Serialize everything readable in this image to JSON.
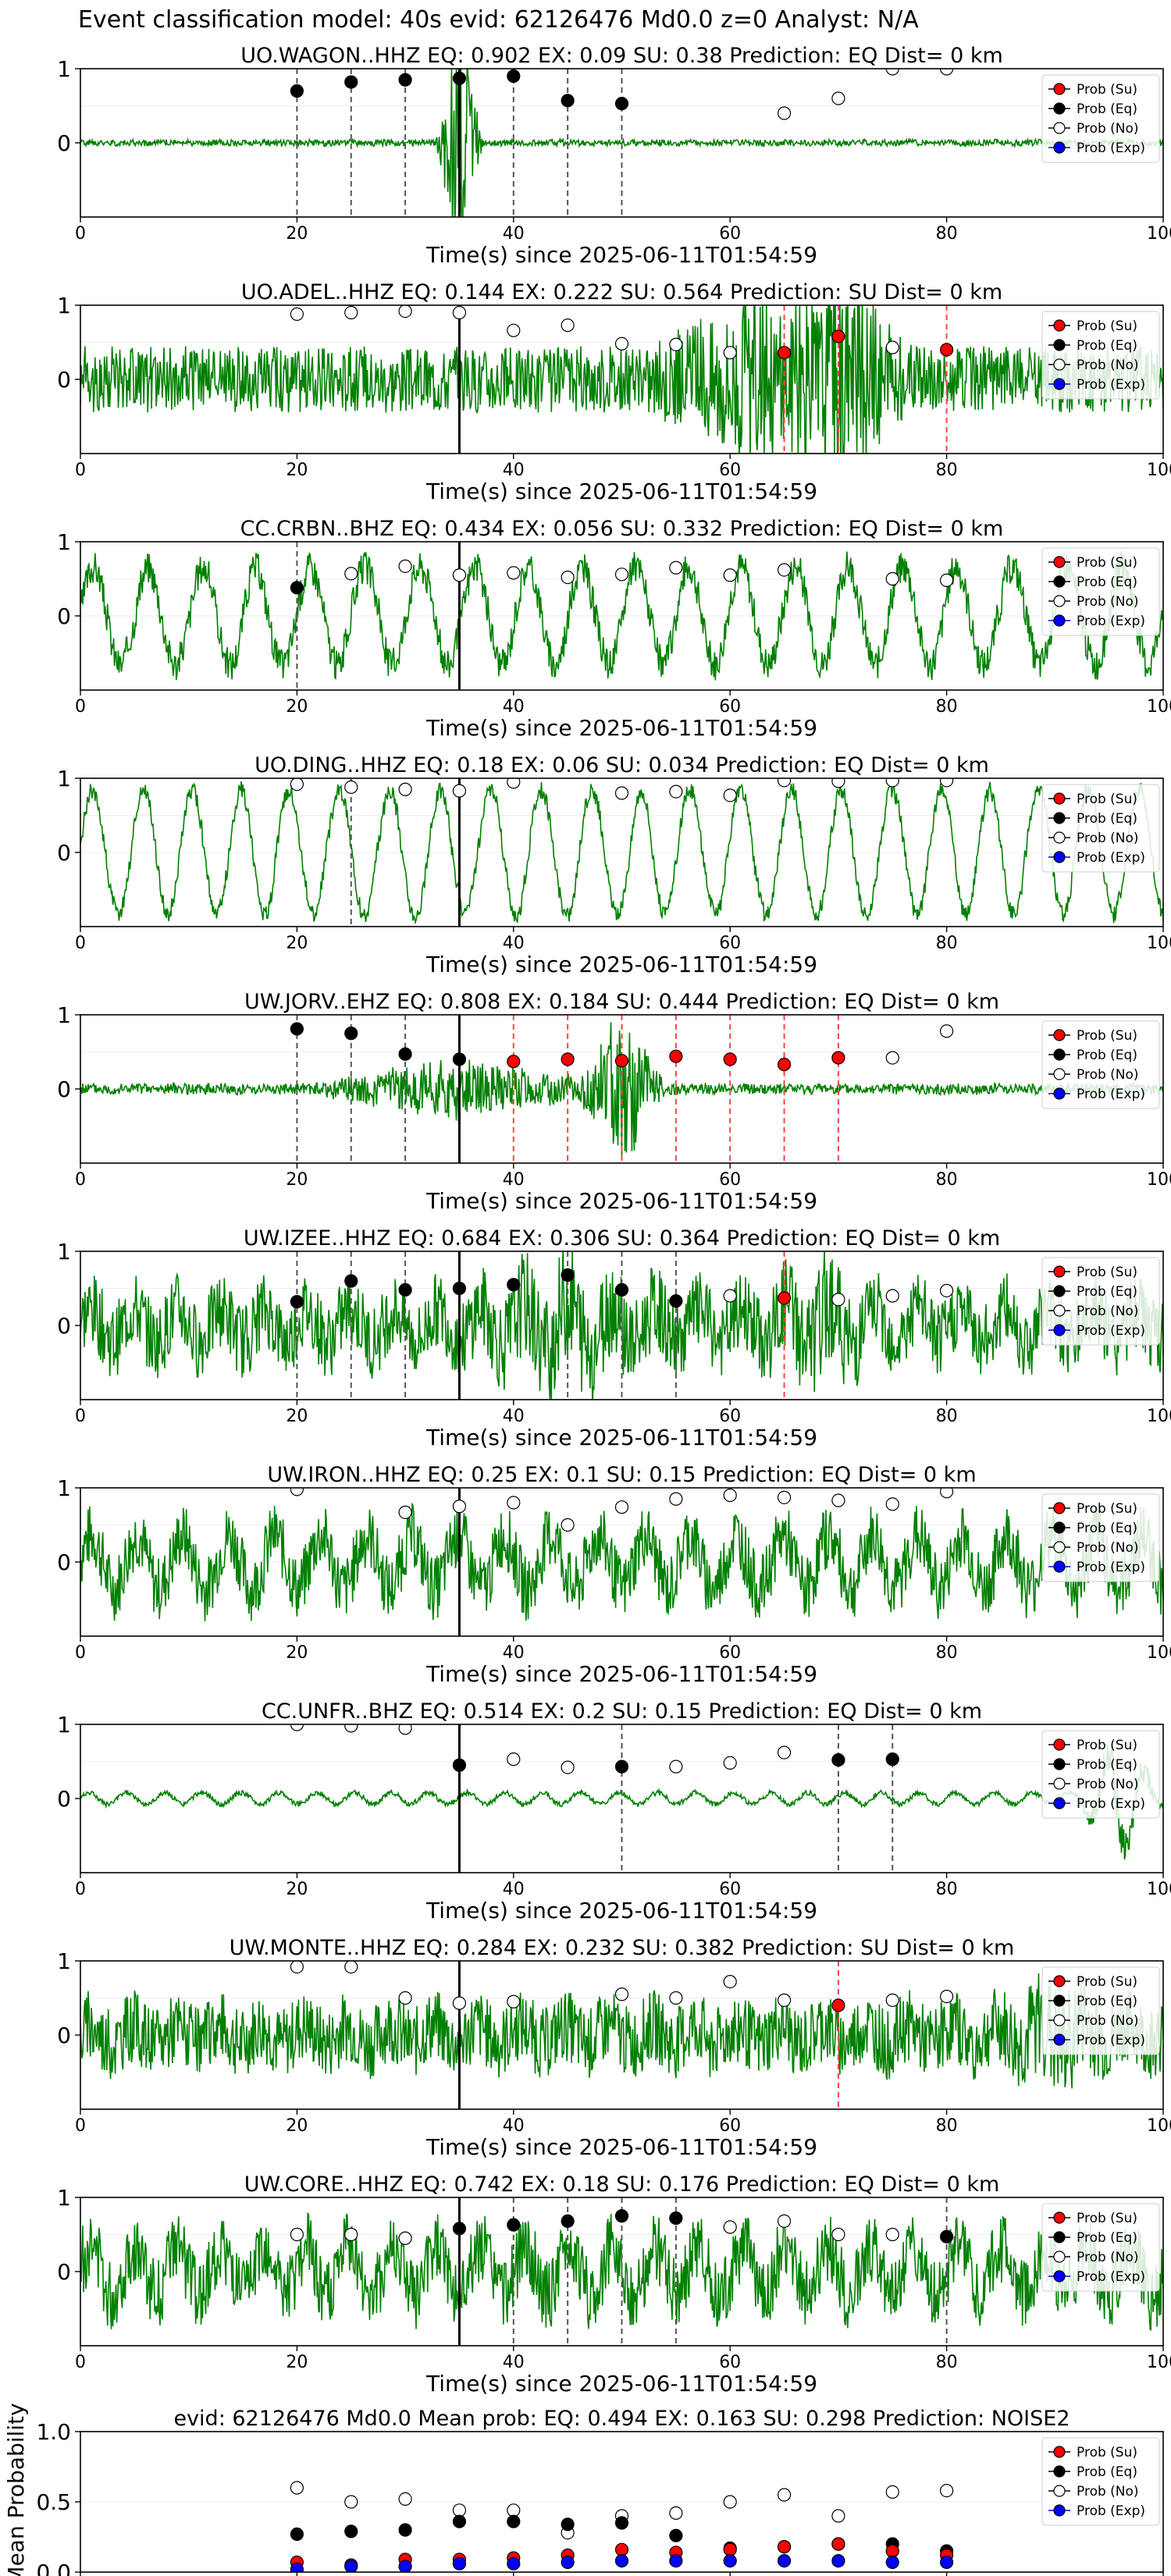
{
  "suptitle": "Event classification model: 40s evid: 62126476 Md0.0 z=0 Analyst: N/A",
  "colors": {
    "waveform": "#008000",
    "su": "#ff0000",
    "eq": "#000000",
    "no": "#ffffff",
    "exp": "#0000ff"
  },
  "legend": [
    "Prob (Su)",
    "Prob (Eq)",
    "Prob (No)",
    "Prob (Exp)"
  ],
  "xlabel": "Time(s) since 2025-06-11T01:54:59",
  "x_ticks": [
    0,
    20,
    40,
    60,
    80,
    100
  ],
  "y_ticks": [
    0,
    1
  ],
  "chart_data": [
    {
      "type": "line",
      "title": "UO.WAGON..HHZ   EQ: 0.902  EX: 0.09  SU: 0.38   Prediction: EQ    Dist= 0 km",
      "trace": {
        "amp": 0.03,
        "burst": [
          [
            35,
            2.2,
            1.2
          ]
        ],
        "seed": 1,
        "noise": 0.9
      },
      "eq": [
        [
          20,
          0.7
        ],
        [
          25,
          0.82
        ],
        [
          30,
          0.85
        ],
        [
          35,
          0.87
        ],
        [
          40,
          0.9
        ],
        [
          45,
          0.57
        ],
        [
          50,
          0.53
        ]
      ],
      "no": [
        [
          65,
          0.4
        ],
        [
          70,
          0.6
        ],
        [
          75,
          1.0
        ],
        [
          80,
          1.0
        ]
      ],
      "su": [],
      "vlines": [
        {
          "x": 20,
          "c": "gray"
        },
        {
          "x": 25,
          "c": "gray"
        },
        {
          "x": 30,
          "c": "gray"
        },
        {
          "x": 40,
          "c": "gray"
        },
        {
          "x": 45,
          "c": "gray"
        },
        {
          "x": 50,
          "c": "gray"
        }
      ]
    },
    {
      "type": "line",
      "title": "UO.ADEL..HHZ   EQ: 0.144  EX: 0.222  SU: 0.564   Prediction: SU    Dist= 0 km",
      "trace": {
        "amp": 0.28,
        "burst": [
          [
            62,
            10,
            0.45
          ],
          [
            71,
            6,
            0.6
          ]
        ],
        "seed": 2,
        "noise": 1.0
      },
      "eq": [],
      "no": [
        [
          20,
          0.88
        ],
        [
          25,
          0.9
        ],
        [
          30,
          0.92
        ],
        [
          35,
          0.9
        ],
        [
          40,
          0.66
        ],
        [
          45,
          0.73
        ],
        [
          50,
          0.48
        ],
        [
          55,
          0.47
        ],
        [
          60,
          0.36
        ],
        [
          75,
          0.43
        ]
      ],
      "su": [
        [
          65,
          0.36
        ],
        [
          70,
          0.58
        ],
        [
          80,
          0.4
        ]
      ],
      "vlines": [
        {
          "x": 65,
          "c": "red"
        },
        {
          "x": 70,
          "c": "red"
        },
        {
          "x": 80,
          "c": "red"
        }
      ]
    },
    {
      "type": "line",
      "title": "CC.CRBN..BHZ   EQ: 0.434  EX: 0.056  SU: 0.332   Prediction: EQ    Dist= 0 km",
      "trace": {
        "amp": 0.55,
        "burst": [],
        "seed": 3,
        "noise": 0.25,
        "period": 5
      },
      "eq": [
        [
          20,
          0.38
        ]
      ],
      "no": [
        [
          25,
          0.57
        ],
        [
          30,
          0.67
        ],
        [
          35,
          0.55
        ],
        [
          40,
          0.58
        ],
        [
          45,
          0.52
        ],
        [
          50,
          0.56
        ],
        [
          55,
          0.65
        ],
        [
          60,
          0.55
        ],
        [
          65,
          0.62
        ],
        [
          75,
          0.5
        ],
        [
          80,
          0.48
        ]
      ],
      "su": [],
      "vlines": [
        {
          "x": 20,
          "c": "gray"
        }
      ]
    },
    {
      "type": "line",
      "title": "UO.DING..HHZ   EQ: 0.18  EX: 0.06  SU: 0.034   Prediction: EQ    Dist= 0 km",
      "trace": {
        "amp": 0.6,
        "burst": [],
        "seed": 4,
        "noise": 0.12,
        "period": 4.6
      },
      "eq": [],
      "no": [
        [
          20,
          0.92
        ],
        [
          25,
          0.88
        ],
        [
          30,
          0.85
        ],
        [
          35,
          0.83
        ],
        [
          40,
          0.95
        ],
        [
          50,
          0.8
        ],
        [
          55,
          0.82
        ],
        [
          60,
          0.77
        ],
        [
          65,
          0.97
        ],
        [
          70,
          0.96
        ],
        [
          75,
          0.97
        ],
        [
          80,
          0.97
        ]
      ],
      "su": [],
      "vlines": [
        {
          "x": 25,
          "c": "gray"
        }
      ]
    },
    {
      "type": "line",
      "title": "UW.JORV..EHZ   EQ: 0.808  EX: 0.184  SU: 0.444   Prediction: EQ    Dist= 0 km",
      "trace": {
        "amp": 0.05,
        "burst": [
          [
            35,
            14,
            0.25
          ],
          [
            50,
            4,
            0.7
          ]
        ],
        "seed": 5,
        "noise": 0.9
      },
      "eq": [
        [
          20,
          0.81
        ],
        [
          25,
          0.75
        ],
        [
          30,
          0.47
        ],
        [
          35,
          0.4
        ]
      ],
      "su": [
        [
          40,
          0.37
        ],
        [
          45,
          0.4
        ],
        [
          50,
          0.38
        ],
        [
          55,
          0.44
        ],
        [
          60,
          0.4
        ],
        [
          65,
          0.33
        ],
        [
          70,
          0.42
        ]
      ],
      "no": [
        [
          75,
          0.42
        ],
        [
          80,
          0.78
        ]
      ],
      "vlines": [
        {
          "x": 20,
          "c": "gray"
        },
        {
          "x": 25,
          "c": "gray"
        },
        {
          "x": 30,
          "c": "gray"
        },
        {
          "x": 40,
          "c": "red"
        },
        {
          "x": 45,
          "c": "red"
        },
        {
          "x": 50,
          "c": "red"
        },
        {
          "x": 55,
          "c": "red"
        },
        {
          "x": 60,
          "c": "red"
        },
        {
          "x": 65,
          "c": "red"
        },
        {
          "x": 70,
          "c": "red"
        }
      ]
    },
    {
      "type": "line",
      "title": "UW.IZEE..HHZ   EQ: 0.684  EX: 0.306  SU: 0.364   Prediction: EQ    Dist= 0 km",
      "trace": {
        "amp": 0.45,
        "burst": [
          [
            45,
            10,
            0.3
          ],
          [
            68,
            6,
            0.3
          ]
        ],
        "seed": 6,
        "noise": 0.7,
        "period": 4
      },
      "eq": [
        [
          20,
          0.32
        ],
        [
          25,
          0.6
        ],
        [
          30,
          0.48
        ],
        [
          35,
          0.5
        ],
        [
          40,
          0.55
        ],
        [
          45,
          0.68
        ],
        [
          50,
          0.48
        ],
        [
          55,
          0.33
        ]
      ],
      "no": [
        [
          60,
          0.4
        ],
        [
          70,
          0.35
        ],
        [
          75,
          0.4
        ],
        [
          80,
          0.47
        ]
      ],
      "su": [
        [
          65,
          0.37
        ]
      ],
      "vlines": [
        {
          "x": 20,
          "c": "gray"
        },
        {
          "x": 25,
          "c": "gray"
        },
        {
          "x": 30,
          "c": "gray"
        },
        {
          "x": 45,
          "c": "gray"
        },
        {
          "x": 50,
          "c": "gray"
        },
        {
          "x": 55,
          "c": "gray"
        },
        {
          "x": 65,
          "c": "red"
        }
      ]
    },
    {
      "type": "line",
      "title": "UW.IRON..HHZ   EQ: 0.25  EX: 0.1  SU: 0.15   Prediction: EQ    Dist= 0 km",
      "trace": {
        "amp": 0.5,
        "burst": [],
        "seed": 7,
        "noise": 0.55,
        "period": 4.2
      },
      "eq": [],
      "no": [
        [
          20,
          0.98
        ],
        [
          30,
          0.67
        ],
        [
          35,
          0.75
        ],
        [
          40,
          0.8
        ],
        [
          45,
          0.5
        ],
        [
          50,
          0.74
        ],
        [
          55,
          0.85
        ],
        [
          60,
          0.9
        ],
        [
          65,
          0.87
        ],
        [
          70,
          0.83
        ],
        [
          75,
          0.78
        ],
        [
          80,
          0.95
        ]
      ],
      "su": [],
      "vlines": []
    },
    {
      "type": "line",
      "title": "CC.UNFR..BHZ   EQ: 0.514  EX: 0.2  SU: 0.15   Prediction: EQ    Dist= 0 km",
      "trace": {
        "amp": 0.07,
        "burst": [
          [
            96,
            4,
            0.6
          ]
        ],
        "seed": 8,
        "noise": 0.3,
        "period": 3.5
      },
      "eq": [
        [
          35,
          0.45
        ],
        [
          50,
          0.43
        ],
        [
          70,
          0.52
        ],
        [
          75,
          0.53
        ]
      ],
      "no": [
        [
          20,
          1.0
        ],
        [
          25,
          0.98
        ],
        [
          30,
          0.95
        ],
        [
          40,
          0.53
        ],
        [
          45,
          0.42
        ],
        [
          55,
          0.43
        ],
        [
          60,
          0.48
        ],
        [
          65,
          0.62
        ]
      ],
      "su": [],
      "vlines": [
        {
          "x": 50,
          "c": "gray"
        },
        {
          "x": 70,
          "c": "gray"
        },
        {
          "x": 75,
          "c": "gray"
        }
      ]
    },
    {
      "type": "line",
      "title": "UW.MONTE..HHZ   EQ: 0.284  EX: 0.232  SU: 0.382   Prediction: SU    Dist= 0 km",
      "trace": {
        "amp": 0.38,
        "burst": [
          [
            90,
            6,
            0.25
          ]
        ],
        "seed": 9,
        "noise": 0.8,
        "period": 4
      },
      "eq": [],
      "no": [
        [
          20,
          0.92
        ],
        [
          25,
          0.92
        ],
        [
          30,
          0.5
        ],
        [
          35,
          0.43
        ],
        [
          40,
          0.45
        ],
        [
          50,
          0.55
        ],
        [
          55,
          0.5
        ],
        [
          60,
          0.72
        ],
        [
          65,
          0.47
        ],
        [
          75,
          0.47
        ],
        [
          80,
          0.52
        ]
      ],
      "su": [
        [
          70,
          0.4
        ]
      ],
      "vlines": [
        {
          "x": 70,
          "c": "red"
        }
      ]
    },
    {
      "type": "line",
      "title": "UW.CORE..HHZ   EQ: 0.742  EX: 0.18  SU: 0.176   Prediction: EQ    Dist= 0 km",
      "trace": {
        "amp": 0.5,
        "burst": [],
        "seed": 10,
        "noise": 0.6,
        "period": 4
      },
      "eq": [
        [
          35,
          0.58
        ],
        [
          40,
          0.63
        ],
        [
          45,
          0.68
        ],
        [
          50,
          0.75
        ],
        [
          55,
          0.72
        ],
        [
          80,
          0.47
        ]
      ],
      "no": [
        [
          20,
          0.5
        ],
        [
          25,
          0.5
        ],
        [
          30,
          0.45
        ],
        [
          60,
          0.6
        ],
        [
          65,
          0.68
        ],
        [
          70,
          0.5
        ],
        [
          75,
          0.5
        ]
      ],
      "su": [],
      "vlines": [
        {
          "x": 40,
          "c": "gray"
        },
        {
          "x": 45,
          "c": "gray"
        },
        {
          "x": 50,
          "c": "gray"
        },
        {
          "x": 55,
          "c": "gray"
        },
        {
          "x": 80,
          "c": "gray"
        }
      ]
    },
    {
      "type": "scatter",
      "title": "evid: 62126476  Md0.0   Mean prob:   EQ: 0.494  EX: 0.163  SU: 0.298   Prediction: NOISE2",
      "ylabel": "Mean Probability",
      "ylim": [
        0,
        1
      ],
      "y_ticks": [
        0.0,
        0.5,
        1.0
      ],
      "x": [
        20,
        25,
        30,
        35,
        40,
        45,
        50,
        55,
        60,
        65,
        70,
        75,
        80
      ],
      "series": [
        {
          "name": "Prob (No)",
          "values": [
            0.6,
            0.5,
            0.52,
            0.44,
            0.44,
            0.28,
            0.4,
            0.42,
            0.5,
            0.55,
            0.4,
            0.57,
            0.58
          ]
        },
        {
          "name": "Prob (Eq)",
          "values": [
            0.27,
            0.29,
            0.3,
            0.36,
            0.36,
            0.34,
            0.35,
            0.26,
            0.17,
            0.18,
            0.2,
            0.2,
            0.15
          ]
        },
        {
          "name": "Prob (Su)",
          "values": [
            0.07,
            0.05,
            0.09,
            0.09,
            0.1,
            0.12,
            0.16,
            0.14,
            0.16,
            0.18,
            0.2,
            0.15,
            0.12
          ]
        },
        {
          "name": "Prob (Exp)",
          "values": [
            0.02,
            0.04,
            0.04,
            0.06,
            0.06,
            0.07,
            0.08,
            0.08,
            0.08,
            0.08,
            0.08,
            0.07,
            0.07
          ]
        }
      ]
    }
  ]
}
